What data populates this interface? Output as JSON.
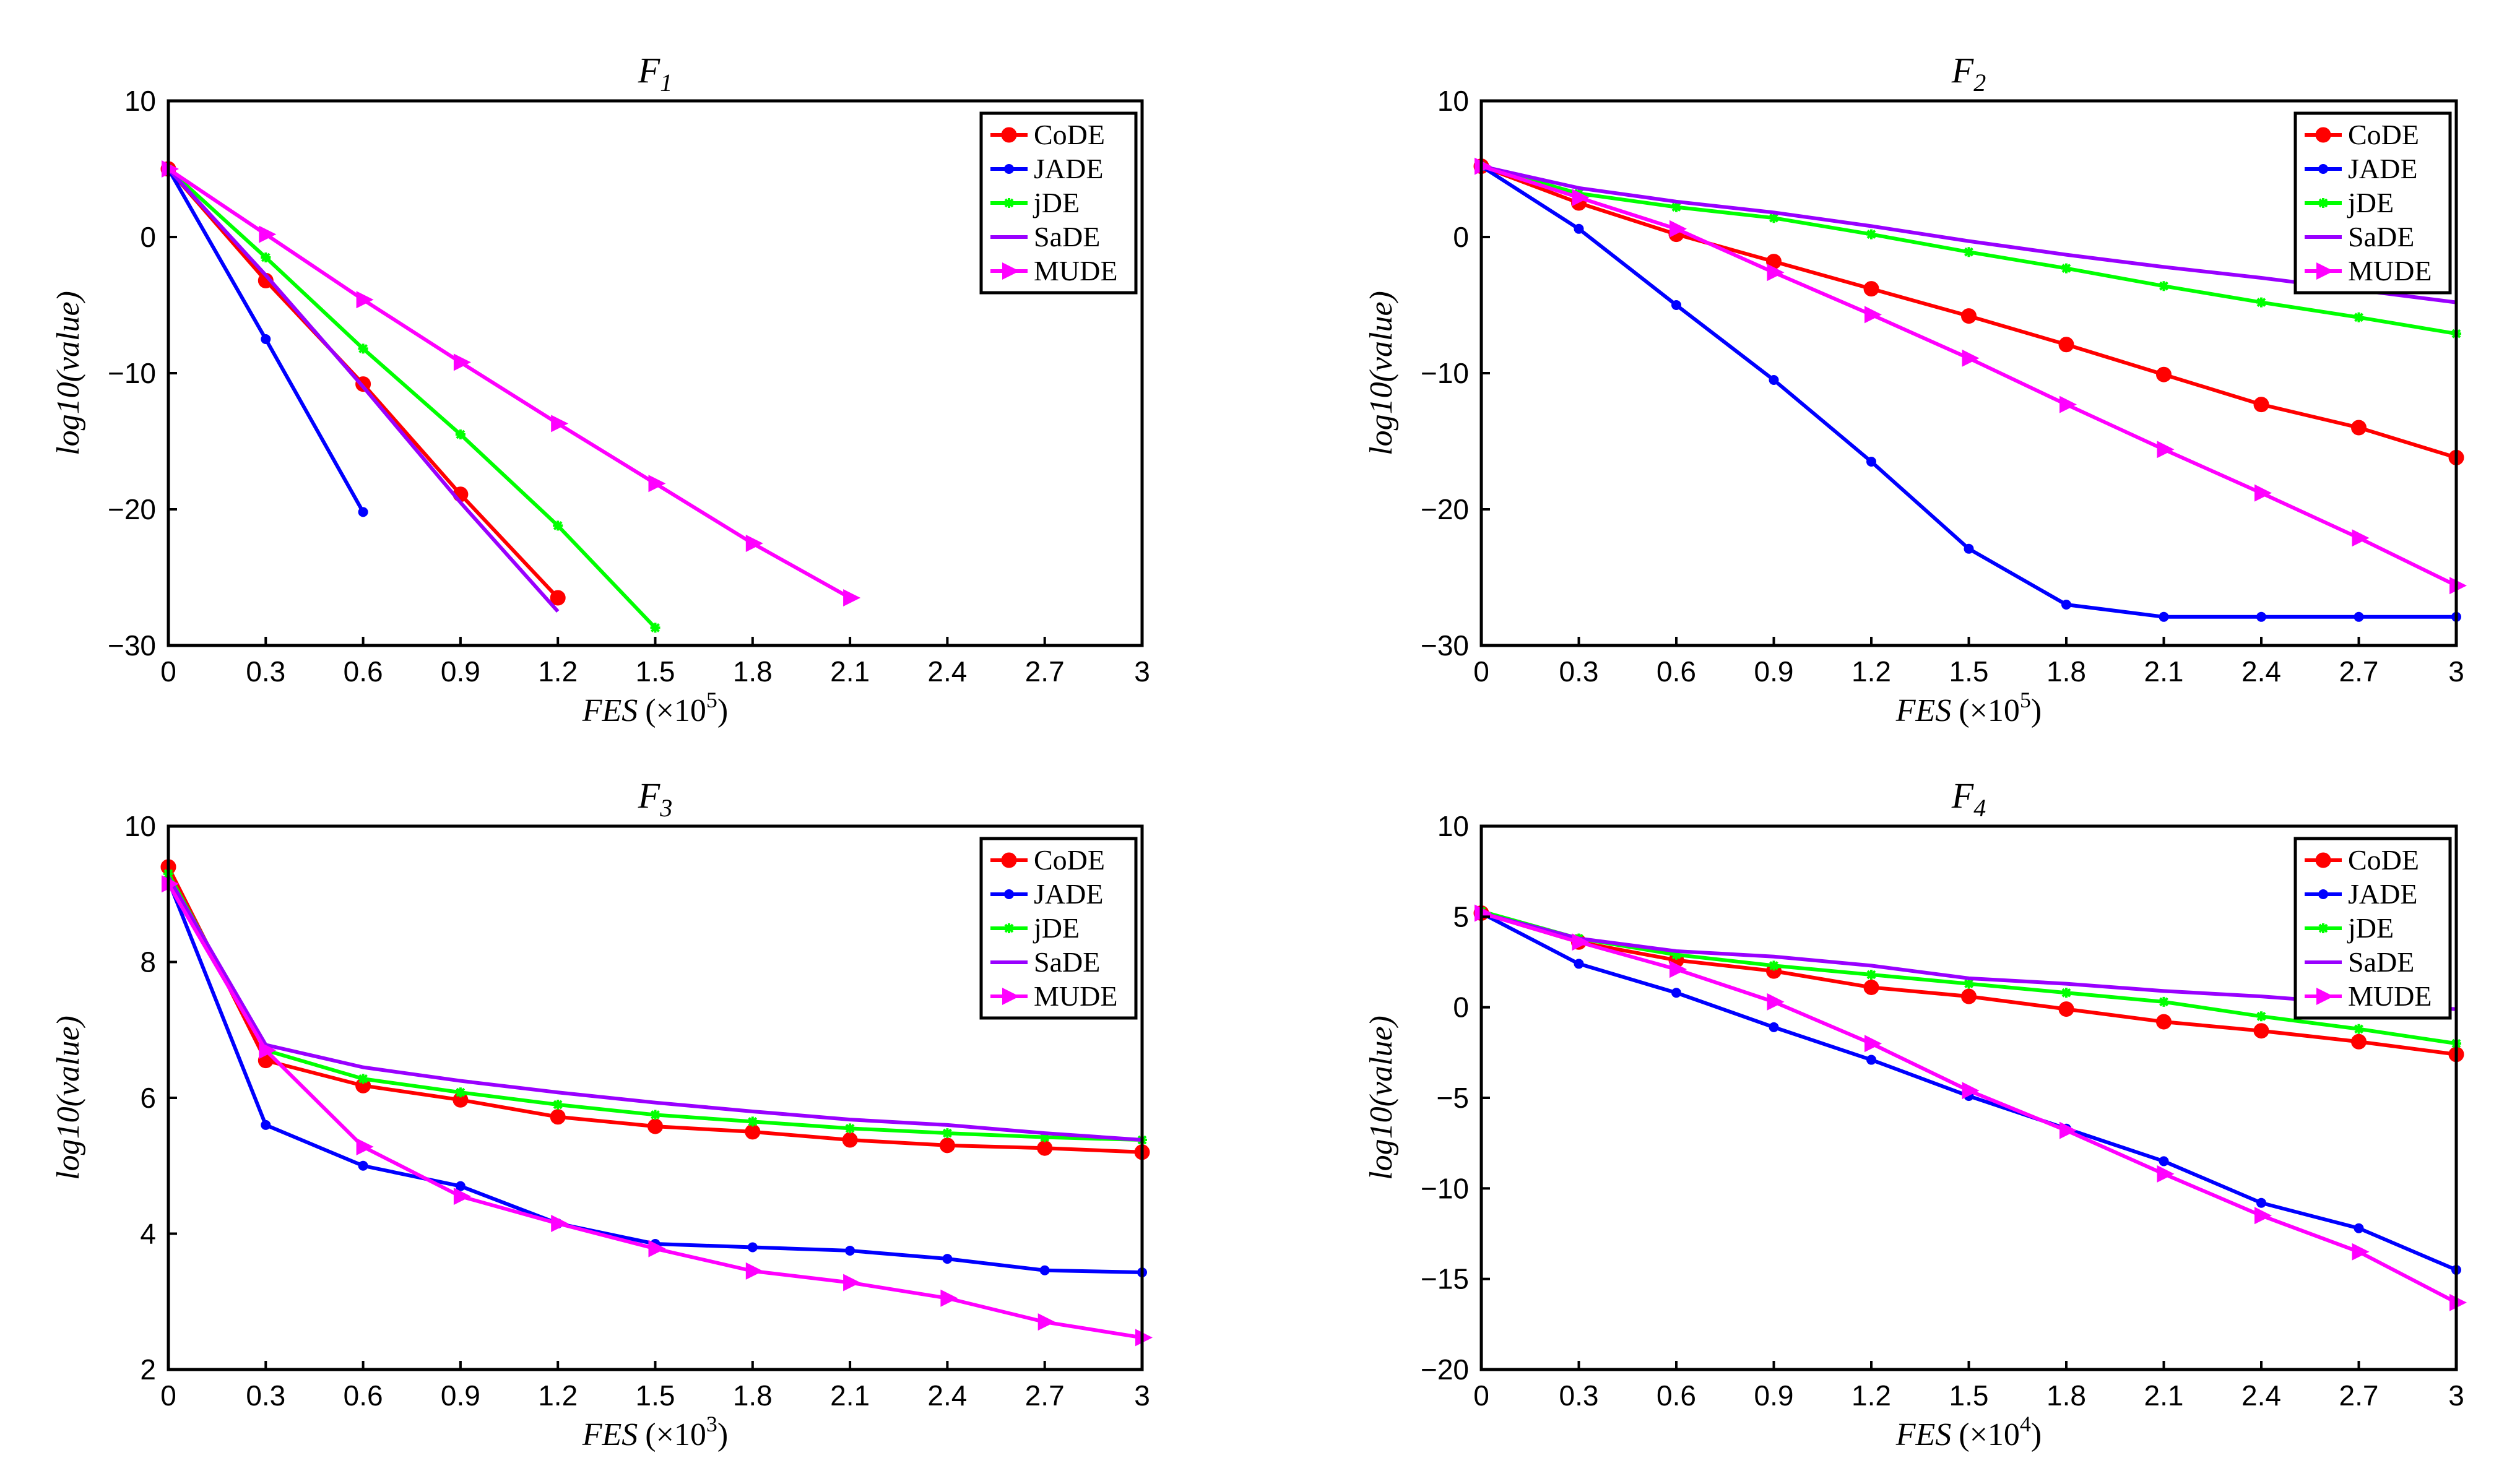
{
  "chart_data": [
    {
      "type": "line",
      "title": "F",
      "title_sub": "1",
      "xlabel": "FES",
      "xlabel_scale": "(×10",
      "xlabel_exp": "5",
      "xlabel_close": ")",
      "ylabel": "log10(value)",
      "xlim": [
        0,
        3
      ],
      "ylim": [
        -30,
        10
      ],
      "xticks": [
        0,
        0.3,
        0.6,
        0.9,
        1.2,
        1.5,
        1.8,
        2.1,
        2.4,
        2.7,
        3
      ],
      "xtick_labels": [
        "0",
        "0.3",
        "0.6",
        "0.9",
        "1.2",
        "1.5",
        "1.8",
        "2.1",
        "2.4",
        "2.7",
        "3"
      ],
      "yticks": [
        10,
        0,
        -10,
        -20,
        -30
      ],
      "ytick_labels": [
        "10",
        "0",
        "−10",
        "−20",
        "−30"
      ],
      "legend": "top-right",
      "series": [
        {
          "name": "CoDE",
          "color": "#ff0000",
          "marker": "circle",
          "x": [
            0,
            0.3,
            0.6,
            0.9,
            1.2
          ],
          "y": [
            5,
            -3.2,
            -10.8,
            -18.9,
            -26.5
          ]
        },
        {
          "name": "JADE",
          "color": "#0000ff",
          "marker": "dot",
          "x": [
            0,
            0.3,
            0.6
          ],
          "y": [
            5,
            -7.5,
            -20.2
          ]
        },
        {
          "name": "jDE",
          "color": "#00ff00",
          "marker": "star",
          "x": [
            0,
            0.3,
            0.6,
            0.9,
            1.2,
            1.5
          ],
          "y": [
            5,
            -1.5,
            -8.2,
            -14.5,
            -21.2,
            -28.7
          ]
        },
        {
          "name": "SaDE",
          "color": "#9900ff",
          "marker": "none",
          "x": [
            0,
            0.3,
            0.6,
            0.9,
            1.2
          ],
          "y": [
            5,
            -2.8,
            -11,
            -19.5,
            -27.5
          ]
        },
        {
          "name": "MUDE",
          "color": "#ff00ff",
          "marker": "triangle",
          "x": [
            0,
            0.3,
            0.6,
            0.9,
            1.2,
            1.5,
            1.8,
            2.1
          ],
          "y": [
            5,
            0.2,
            -4.6,
            -9.2,
            -13.7,
            -18.1,
            -22.5,
            -26.5
          ]
        }
      ]
    },
    {
      "type": "line",
      "title": "F",
      "title_sub": "2",
      "xlabel": "FES",
      "xlabel_scale": "(×10",
      "xlabel_exp": "5",
      "xlabel_close": ")",
      "ylabel": "log10(value)",
      "xlim": [
        0,
        3
      ],
      "ylim": [
        -30,
        10
      ],
      "xticks": [
        0,
        0.3,
        0.6,
        0.9,
        1.2,
        1.5,
        1.8,
        2.1,
        2.4,
        2.7,
        3
      ],
      "xtick_labels": [
        "0",
        "0.3",
        "0.6",
        "0.9",
        "1.2",
        "1.5",
        "1.8",
        "2.1",
        "2.4",
        "2.7",
        "3"
      ],
      "yticks": [
        10,
        0,
        -10,
        -20,
        -30
      ],
      "ytick_labels": [
        "10",
        "0",
        "−10",
        "−20",
        "−30"
      ],
      "legend": "top-right",
      "series": [
        {
          "name": "CoDE",
          "color": "#ff0000",
          "marker": "circle",
          "x": [
            0,
            0.3,
            0.6,
            0.9,
            1.2,
            1.5,
            1.8,
            2.1,
            2.4,
            2.7,
            3
          ],
          "y": [
            5.2,
            2.5,
            0.2,
            -1.8,
            -3.8,
            -5.8,
            -7.9,
            -10.1,
            -12.3,
            -14,
            -16.2
          ]
        },
        {
          "name": "JADE",
          "color": "#0000ff",
          "marker": "dot",
          "x": [
            0,
            0.3,
            0.6,
            0.9,
            1.2,
            1.5,
            1.8,
            2.1,
            2.4,
            2.7,
            3
          ],
          "y": [
            5.2,
            0.6,
            -5,
            -10.5,
            -16.5,
            -22.9,
            -27,
            -27.9,
            -27.9,
            -27.9,
            -27.9
          ]
        },
        {
          "name": "jDE",
          "color": "#00ff00",
          "marker": "star",
          "x": [
            0,
            0.3,
            0.6,
            0.9,
            1.2,
            1.5,
            1.8,
            2.1,
            2.4,
            2.7,
            3
          ],
          "y": [
            5.2,
            3.2,
            2.2,
            1.4,
            0.2,
            -1.1,
            -2.3,
            -3.6,
            -4.8,
            -5.9,
            -7.1
          ]
        },
        {
          "name": "SaDE",
          "color": "#9900ff",
          "marker": "none",
          "x": [
            0,
            0.3,
            0.6,
            0.9,
            1.2,
            1.5,
            1.8,
            2.1,
            2.4,
            2.7,
            3
          ],
          "y": [
            5.2,
            3.6,
            2.6,
            1.8,
            0.8,
            -0.3,
            -1.3,
            -2.2,
            -3,
            -3.9,
            -4.8
          ]
        },
        {
          "name": "MUDE",
          "color": "#ff00ff",
          "marker": "triangle",
          "x": [
            0,
            0.3,
            0.6,
            0.9,
            1.2,
            1.5,
            1.8,
            2.1,
            2.4,
            2.7,
            3
          ],
          "y": [
            5.2,
            2.9,
            0.6,
            -2.6,
            -5.7,
            -8.9,
            -12.3,
            -15.6,
            -18.8,
            -22.1,
            -25.6
          ]
        }
      ]
    },
    {
      "type": "line",
      "title": "F",
      "title_sub": "3",
      "xlabel": "FES",
      "xlabel_scale": "(×10",
      "xlabel_exp": "3",
      "xlabel_close": ")",
      "ylabel": "log10(value)",
      "xlim": [
        0,
        3
      ],
      "ylim": [
        2,
        10
      ],
      "xticks": [
        0,
        0.3,
        0.6,
        0.9,
        1.2,
        1.5,
        1.8,
        2.1,
        2.4,
        2.7,
        3
      ],
      "xtick_labels": [
        "0",
        "0.3",
        "0.6",
        "0.9",
        "1.2",
        "1.5",
        "1.8",
        "2.1",
        "2.4",
        "2.7",
        "3"
      ],
      "yticks": [
        10,
        8,
        6,
        4,
        2
      ],
      "ytick_labels": [
        "10",
        "8",
        "6",
        "4",
        "2"
      ],
      "legend": "top-right",
      "series": [
        {
          "name": "CoDE",
          "color": "#ff0000",
          "marker": "circle",
          "x": [
            0,
            0.3,
            0.6,
            0.9,
            1.2,
            1.5,
            1.8,
            2.1,
            2.4,
            2.7,
            3
          ],
          "y": [
            9.4,
            6.55,
            6.18,
            5.97,
            5.72,
            5.58,
            5.5,
            5.38,
            5.3,
            5.26,
            5.2
          ]
        },
        {
          "name": "JADE",
          "color": "#0000ff",
          "marker": "dot",
          "x": [
            0,
            0.3,
            0.6,
            0.9,
            1.2,
            1.5,
            1.8,
            2.1,
            2.4,
            2.7,
            3
          ],
          "y": [
            9.2,
            5.6,
            5,
            4.7,
            4.15,
            3.85,
            3.8,
            3.75,
            3.63,
            3.46,
            3.43
          ]
        },
        {
          "name": "jDE",
          "color": "#00ff00",
          "marker": "star",
          "x": [
            0,
            0.3,
            0.6,
            0.9,
            1.2,
            1.5,
            1.8,
            2.1,
            2.4,
            2.7,
            3
          ],
          "y": [
            9.3,
            6.7,
            6.28,
            6.08,
            5.9,
            5.75,
            5.65,
            5.55,
            5.48,
            5.42,
            5.38
          ]
        },
        {
          "name": "SaDE",
          "color": "#9900ff",
          "marker": "none",
          "x": [
            0,
            0.3,
            0.6,
            0.9,
            1.2,
            1.5,
            1.8,
            2.1,
            2.4,
            2.7,
            3
          ],
          "y": [
            9.25,
            6.78,
            6.45,
            6.25,
            6.08,
            5.93,
            5.8,
            5.68,
            5.6,
            5.48,
            5.38
          ]
        },
        {
          "name": "MUDE",
          "color": "#ff00ff",
          "marker": "triangle",
          "x": [
            0,
            0.3,
            0.6,
            0.9,
            1.2,
            1.5,
            1.8,
            2.1,
            2.4,
            2.7,
            3
          ],
          "y": [
            9.15,
            6.7,
            5.28,
            4.55,
            4.15,
            3.78,
            3.45,
            3.28,
            3.05,
            2.7,
            2.47
          ]
        }
      ]
    },
    {
      "type": "line",
      "title": "F",
      "title_sub": "4",
      "xlabel": "FES",
      "xlabel_scale": "(×10",
      "xlabel_exp": "4",
      "xlabel_close": ")",
      "ylabel": "log10(value)",
      "xlim": [
        0,
        3
      ],
      "ylim": [
        -20,
        10
      ],
      "xticks": [
        0,
        0.3,
        0.6,
        0.9,
        1.2,
        1.5,
        1.8,
        2.1,
        2.4,
        2.7,
        3
      ],
      "xtick_labels": [
        "0",
        "0.3",
        "0.6",
        "0.9",
        "1.2",
        "1.5",
        "1.8",
        "2.1",
        "2.4",
        "2.7",
        "3"
      ],
      "yticks": [
        10,
        5,
        0,
        -5,
        -10,
        -15,
        -20
      ],
      "ytick_labels": [
        "10",
        "5",
        "0",
        "−5",
        "−10",
        "−15",
        "−20"
      ],
      "legend": "top-right",
      "series": [
        {
          "name": "CoDE",
          "color": "#ff0000",
          "marker": "circle",
          "x": [
            0,
            0.3,
            0.6,
            0.9,
            1.2,
            1.5,
            1.8,
            2.1,
            2.4,
            2.7,
            3
          ],
          "y": [
            5.2,
            3.6,
            2.6,
            2,
            1.1,
            0.6,
            -0.1,
            -0.8,
            -1.3,
            -1.9,
            -2.6
          ]
        },
        {
          "name": "JADE",
          "color": "#0000ff",
          "marker": "dot",
          "x": [
            0,
            0.3,
            0.6,
            0.9,
            1.2,
            1.5,
            1.8,
            2.1,
            2.4,
            2.7,
            3
          ],
          "y": [
            5.2,
            2.4,
            0.8,
            -1.1,
            -2.9,
            -4.9,
            -6.7,
            -8.5,
            -10.8,
            -12.2,
            -14.5
          ]
        },
        {
          "name": "jDE",
          "color": "#00ff00",
          "marker": "star",
          "x": [
            0,
            0.3,
            0.6,
            0.9,
            1.2,
            1.5,
            1.8,
            2.1,
            2.4,
            2.7,
            3
          ],
          "y": [
            5.3,
            3.8,
            2.9,
            2.3,
            1.8,
            1.3,
            0.8,
            0.3,
            -0.5,
            -1.2,
            -2
          ]
        },
        {
          "name": "SaDE",
          "color": "#9900ff",
          "marker": "none",
          "x": [
            0,
            0.3,
            0.6,
            0.9,
            1.2,
            1.5,
            1.8,
            2.1,
            2.4,
            2.7,
            3
          ],
          "y": [
            5.2,
            3.8,
            3.1,
            2.8,
            2.3,
            1.6,
            1.3,
            0.9,
            0.6,
            0.2,
            -0.1
          ]
        },
        {
          "name": "MUDE",
          "color": "#ff00ff",
          "marker": "triangle",
          "x": [
            0,
            0.3,
            0.6,
            0.9,
            1.2,
            1.5,
            1.8,
            2.1,
            2.4,
            2.7,
            3
          ],
          "y": [
            5.2,
            3.6,
            2.1,
            0.3,
            -2,
            -4.6,
            -6.8,
            -9.2,
            -11.5,
            -13.5,
            -16.3
          ]
        }
      ]
    }
  ]
}
